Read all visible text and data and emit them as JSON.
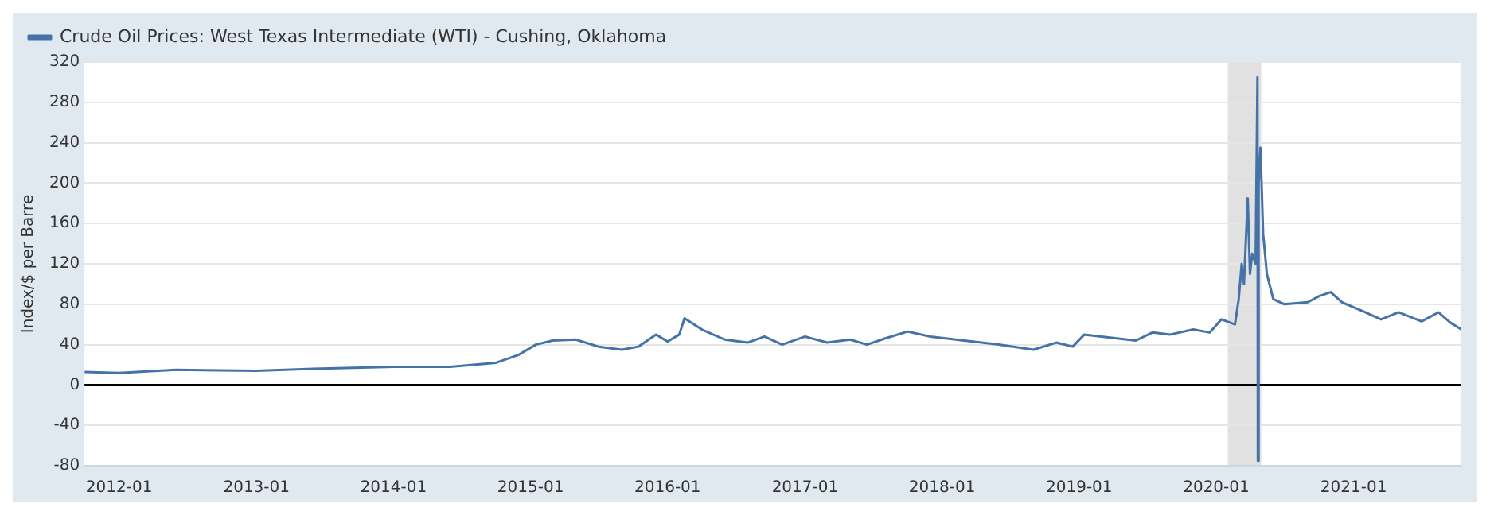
{
  "chart_data": {
    "type": "line",
    "ylabel": "Index/$ per Barre",
    "legend": "top left",
    "grid": "y",
    "marker": "none",
    "line_style": "solid",
    "xlim": [
      "2011-10-01",
      "2021-10-15"
    ],
    "xticks": [
      {
        "value": "2012-01-01",
        "label": "2012-01"
      },
      {
        "value": "2013-01-01",
        "label": "2013-01"
      },
      {
        "value": "2014-01-01",
        "label": "2014-01"
      },
      {
        "value": "2015-01-01",
        "label": "2015-01"
      },
      {
        "value": "2016-01-01",
        "label": "2016-01"
      },
      {
        "value": "2017-01-01",
        "label": "2017-01"
      },
      {
        "value": "2018-01-01",
        "label": "2018-01"
      },
      {
        "value": "2019-01-01",
        "label": "2019-01"
      },
      {
        "value": "2020-01-01",
        "label": "2020-01"
      },
      {
        "value": "2021-01-01",
        "label": "2021-01"
      }
    ],
    "ylim": [
      -80,
      320
    ],
    "yticks": [
      -80,
      -40,
      0,
      40,
      80,
      120,
      160,
      200,
      240,
      280,
      320
    ],
    "ref_lines": [
      {
        "axis": "y",
        "value": 0,
        "color": "#000000"
      }
    ],
    "bands": [
      {
        "axis": "x",
        "from": "2020-02-01",
        "to": "2020-04-30",
        "color": "#e1e1e1"
      }
    ],
    "series": [
      {
        "name": "Crude Oil Prices: West Texas Intermediate (WTI) - Cushing, Oklahoma",
        "color": "#4572a7",
        "x": [
          "2011-10-01",
          "2012-01-01",
          "2012-06-01",
          "2013-01-01",
          "2013-06-01",
          "2014-01-01",
          "2014-06-01",
          "2014-10-01",
          "2014-12-01",
          "2015-01-15",
          "2015-03-01",
          "2015-05-01",
          "2015-07-01",
          "2015-09-01",
          "2015-10-15",
          "2015-12-01",
          "2016-01-01",
          "2016-02-01",
          "2016-02-15",
          "2016-04-01",
          "2016-06-01",
          "2016-08-01",
          "2016-09-15",
          "2016-11-01",
          "2017-01-01",
          "2017-03-01",
          "2017-05-01",
          "2017-06-15",
          "2017-08-01",
          "2017-10-01",
          "2017-12-01",
          "2018-03-01",
          "2018-06-01",
          "2018-09-01",
          "2018-11-01",
          "2018-12-15",
          "2019-01-15",
          "2019-03-01",
          "2019-06-01",
          "2019-07-15",
          "2019-09-01",
          "2019-11-01",
          "2019-12-15",
          "2020-01-15",
          "2020-02-20",
          "2020-03-01",
          "2020-03-09",
          "2020-03-15",
          "2020-03-25",
          "2020-03-31",
          "2020-04-06",
          "2020-04-15",
          "2020-04-20",
          "2020-04-21",
          "2020-04-23",
          "2020-04-28",
          "2020-05-05",
          "2020-05-15",
          "2020-06-01",
          "2020-07-01",
          "2020-09-01",
          "2020-10-01",
          "2020-11-01",
          "2020-12-01",
          "2021-02-01",
          "2021-03-15",
          "2021-05-01",
          "2021-07-01",
          "2021-08-15",
          "2021-09-15",
          "2021-10-15"
        ],
        "values": [
          13,
          12,
          15,
          14,
          16,
          18,
          18,
          22,
          30,
          40,
          44,
          45,
          38,
          35,
          38,
          50,
          43,
          50,
          66,
          55,
          45,
          42,
          48,
          40,
          48,
          42,
          45,
          40,
          46,
          53,
          48,
          44,
          40,
          35,
          42,
          38,
          50,
          48,
          44,
          52,
          50,
          55,
          52,
          65,
          60,
          85,
          120,
          100,
          185,
          110,
          130,
          120,
          305,
          -75,
          200,
          235,
          150,
          110,
          85,
          80,
          82,
          88,
          92,
          82,
          72,
          65,
          72,
          63,
          72,
          62,
          55
        ]
      }
    ]
  }
}
